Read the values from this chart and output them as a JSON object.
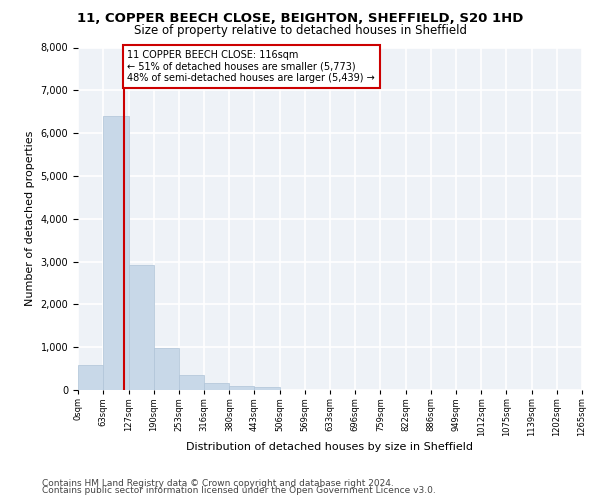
{
  "title1": "11, COPPER BEECH CLOSE, BEIGHTON, SHEFFIELD, S20 1HD",
  "title2": "Size of property relative to detached houses in Sheffield",
  "xlabel": "Distribution of detached houses by size in Sheffield",
  "ylabel": "Number of detached properties",
  "footnote1": "Contains HM Land Registry data © Crown copyright and database right 2024.",
  "footnote2": "Contains public sector information licensed under the Open Government Licence v3.0.",
  "bar_edges": [
    0,
    63,
    127,
    190,
    253,
    316,
    380,
    443,
    506,
    569,
    633,
    696,
    759,
    822,
    886,
    949,
    1012,
    1075,
    1139,
    1202,
    1265
  ],
  "bar_heights": [
    580,
    6400,
    2920,
    980,
    360,
    160,
    100,
    65,
    0,
    0,
    0,
    0,
    0,
    0,
    0,
    0,
    0,
    0,
    0,
    0
  ],
  "bar_color": "#c8d8e8",
  "bar_edge_color": "#b0c4d8",
  "tick_labels": [
    "0sqm",
    "63sqm",
    "127sqm",
    "190sqm",
    "253sqm",
    "316sqm",
    "380sqm",
    "443sqm",
    "506sqm",
    "569sqm",
    "633sqm",
    "696sqm",
    "759sqm",
    "822sqm",
    "886sqm",
    "949sqm",
    "1012sqm",
    "1075sqm",
    "1139sqm",
    "1202sqm",
    "1265sqm"
  ],
  "property_size": 116,
  "property_label": "11 COPPER BEECH CLOSE: 116sqm",
  "annotation_line1": "← 51% of detached houses are smaller (5,773)",
  "annotation_line2": "48% of semi-detached houses are larger (5,439) →",
  "annotation_box_color": "#cc0000",
  "vline_color": "#cc0000",
  "ylim": [
    0,
    8000
  ],
  "yticks": [
    0,
    1000,
    2000,
    3000,
    4000,
    5000,
    6000,
    7000,
    8000
  ],
  "bg_color": "#eef2f7",
  "grid_color": "#ffffff",
  "title1_fontsize": 9.5,
  "title2_fontsize": 8.5,
  "xlabel_fontsize": 8,
  "ylabel_fontsize": 8,
  "tick_fontsize": 6,
  "annotation_fontsize": 7,
  "footnote_fontsize": 6.5
}
